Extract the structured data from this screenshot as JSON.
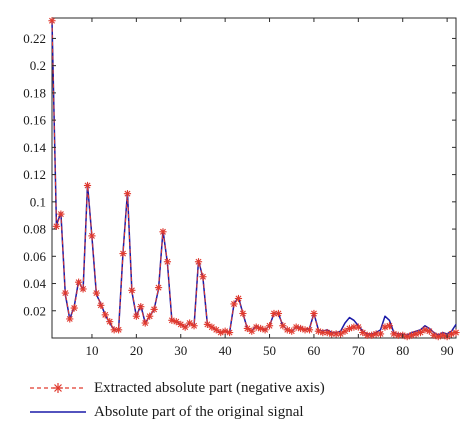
{
  "chart_data": {
    "type": "line",
    "xlim": [
      1,
      92
    ],
    "ylim": [
      0,
      0.235
    ],
    "x_ticks": [
      10,
      20,
      30,
      40,
      50,
      60,
      70,
      80,
      90
    ],
    "y_ticks": [
      0.02,
      0.04,
      0.06,
      0.08,
      0.1,
      0.12,
      0.14,
      0.16,
      0.18,
      0.2,
      0.22
    ],
    "grid": false,
    "legend_position": "bottom",
    "series": [
      {
        "name": "Extracted absolute part (negative axis)",
        "color": "#e03a2f",
        "style": "dashed line with asterisk markers",
        "values": [
          0.233,
          0.082,
          0.091,
          0.033,
          0.014,
          0.022,
          0.041,
          0.036,
          0.112,
          0.075,
          0.033,
          0.024,
          0.017,
          0.012,
          0.006,
          0.006,
          0.062,
          0.106,
          0.035,
          0.016,
          0.023,
          0.011,
          0.016,
          0.021,
          0.037,
          0.078,
          0.056,
          0.013,
          0.012,
          0.01,
          0.008,
          0.011,
          0.009,
          0.056,
          0.045,
          0.01,
          0.008,
          0.006,
          0.004,
          0.005,
          0.004,
          0.025,
          0.029,
          0.018,
          0.007,
          0.005,
          0.008,
          0.007,
          0.006,
          0.009,
          0.018,
          0.018,
          0.009,
          0.006,
          0.005,
          0.008,
          0.007,
          0.006,
          0.006,
          0.018,
          0.005,
          0.004,
          0.004,
          0.003,
          0.003,
          0.003,
          0.005,
          0.007,
          0.008,
          0.008,
          0.004,
          0.002,
          0.002,
          0.003,
          0.003,
          0.008,
          0.009,
          0.003,
          0.002,
          0.002,
          0.001,
          0.002,
          0.003,
          0.004,
          0.006,
          0.005,
          0.002,
          0.001,
          0.002,
          0.001,
          0.003,
          0.004
        ]
      },
      {
        "name": "Absolute part of the original signal",
        "color": "#1a1aa8",
        "style": "solid line",
        "values": [
          0.233,
          0.083,
          0.092,
          0.032,
          0.014,
          0.023,
          0.042,
          0.035,
          0.113,
          0.074,
          0.032,
          0.025,
          0.017,
          0.011,
          0.006,
          0.006,
          0.063,
          0.107,
          0.034,
          0.016,
          0.024,
          0.011,
          0.016,
          0.021,
          0.036,
          0.079,
          0.055,
          0.013,
          0.012,
          0.01,
          0.008,
          0.011,
          0.009,
          0.057,
          0.044,
          0.01,
          0.008,
          0.006,
          0.004,
          0.005,
          0.004,
          0.025,
          0.03,
          0.018,
          0.007,
          0.005,
          0.009,
          0.007,
          0.006,
          0.009,
          0.018,
          0.018,
          0.009,
          0.006,
          0.005,
          0.008,
          0.008,
          0.006,
          0.007,
          0.018,
          0.006,
          0.005,
          0.006,
          0.004,
          0.004,
          0.005,
          0.011,
          0.015,
          0.013,
          0.009,
          0.005,
          0.003,
          0.003,
          0.004,
          0.006,
          0.016,
          0.013,
          0.004,
          0.003,
          0.003,
          0.002,
          0.004,
          0.005,
          0.006,
          0.009,
          0.007,
          0.004,
          0.002,
          0.004,
          0.003,
          0.005,
          0.01
        ]
      }
    ]
  }
}
